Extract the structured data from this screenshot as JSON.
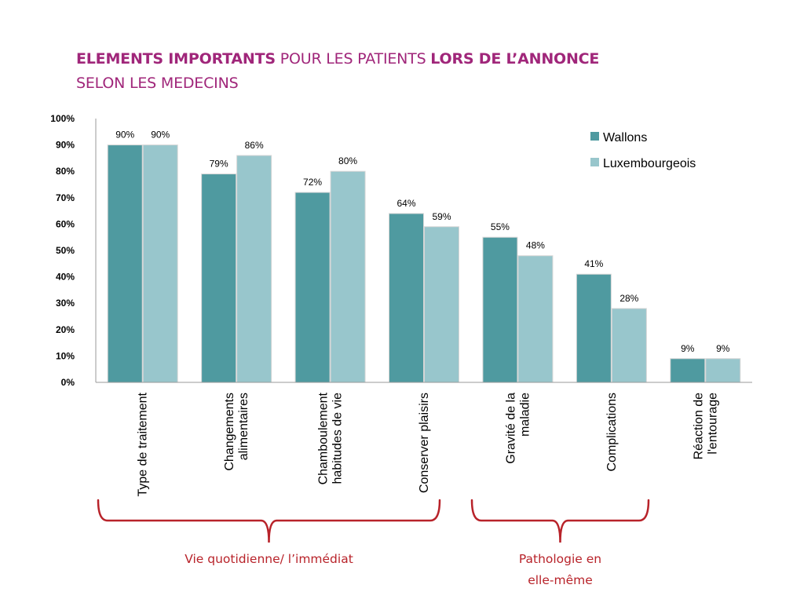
{
  "title": {
    "part1_bold": "ELEMENTS IMPORTANTS",
    "part2": " POUR LES PATIENTS ",
    "part3_bold": "LORS DE L’ANNONCE",
    "line2": "SELON LES MEDECINS"
  },
  "colors": {
    "title": "#a0267a",
    "wallons": "#4f9aa0",
    "luxembourgeois": "#98c6cc",
    "bracket": "#b8232a"
  },
  "chart_data": {
    "type": "bar",
    "categories": [
      [
        "Type de traitement"
      ],
      [
        "Changements",
        "alimentaires"
      ],
      [
        "Chamboulement",
        "habitudes de vie"
      ],
      [
        "Conserver plaisirs"
      ],
      [
        "Gravité de la",
        "maladie"
      ],
      [
        "Complications"
      ],
      [
        "Réaction de",
        "l'entourage"
      ]
    ],
    "series": [
      {
        "name": "Wallons",
        "values": [
          90,
          79,
          72,
          64,
          55,
          41,
          9
        ],
        "labels": [
          "90%",
          "79%",
          "72%",
          "64%",
          "55%",
          "41%",
          "9%"
        ]
      },
      {
        "name": "Luxembourgeois",
        "values": [
          90,
          86,
          80,
          59,
          48,
          28,
          9
        ],
        "labels": [
          "90%",
          "86%",
          "80%",
          "59%",
          "48%",
          "28%",
          "9%"
        ]
      }
    ],
    "yticks": [
      "0%",
      "10%",
      "20%",
      "30%",
      "40%",
      "50%",
      "60%",
      "70%",
      "80%",
      "90%",
      "100%"
    ],
    "ylim": [
      0,
      100
    ],
    "grid": false,
    "legend_position": "top-right"
  },
  "groups": [
    {
      "label_lines": [
        "Vie quotidienne/ l’immédiat"
      ],
      "from_category": 0,
      "to_category": 3
    },
    {
      "label_lines": [
        "Pathologie en",
        "elle-même"
      ],
      "from_category": 4,
      "to_category": 5
    }
  ]
}
